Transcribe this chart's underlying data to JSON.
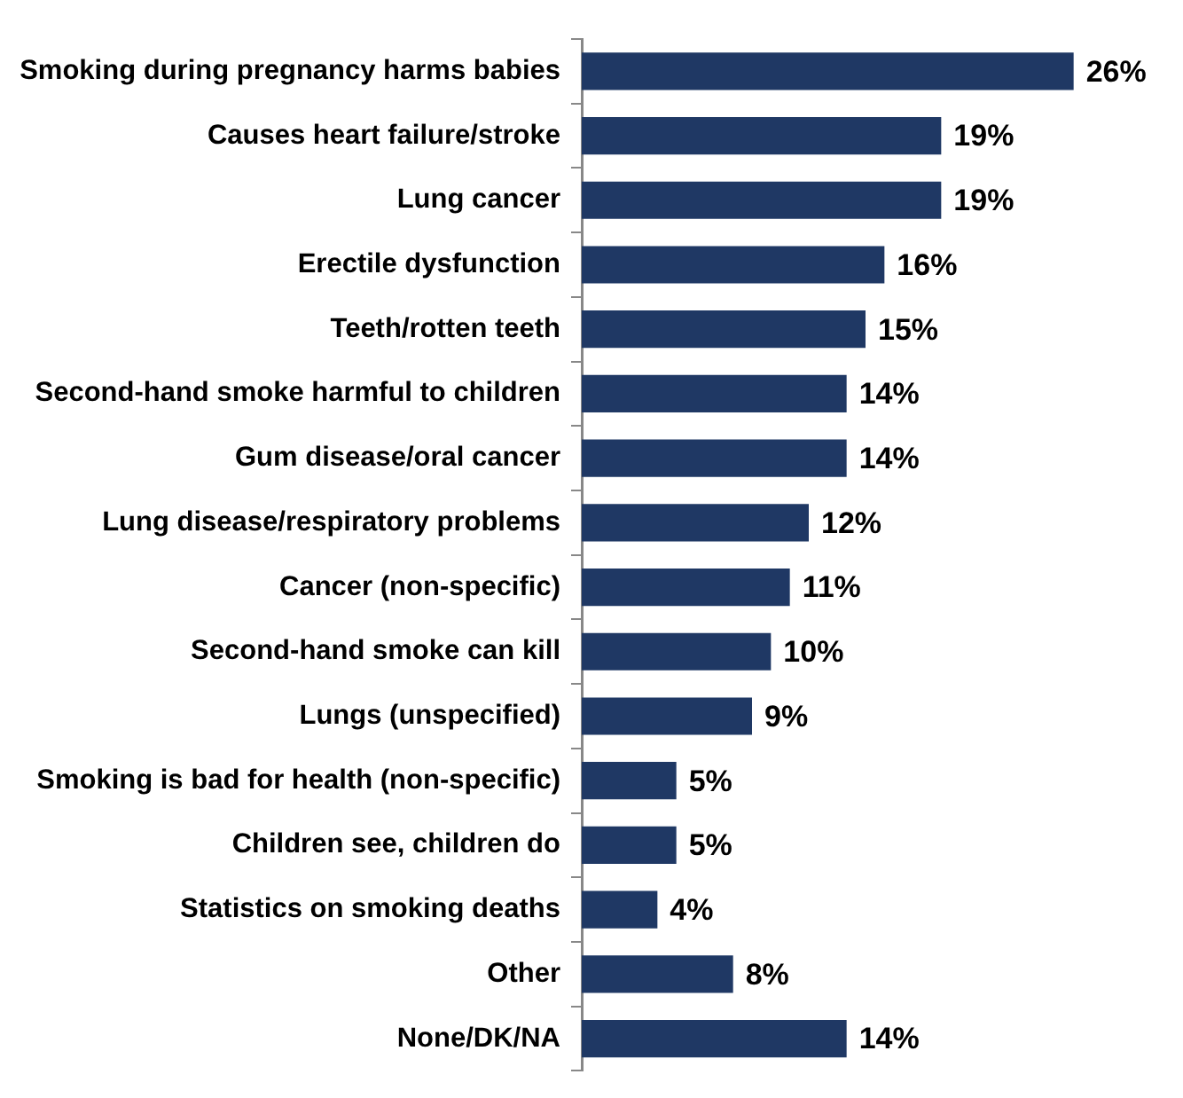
{
  "chart_data": {
    "type": "bar",
    "orientation": "horizontal",
    "categories": [
      "Smoking during pregnancy harms babies",
      "Causes heart failure/stroke",
      "Lung cancer",
      "Erectile dysfunction",
      "Teeth/rotten teeth",
      "Second-hand smoke harmful to children",
      "Gum disease/oral cancer",
      "Lung disease/respiratory problems",
      "Cancer (non-specific)",
      "Second-hand smoke can kill",
      "Lungs (unspecified)",
      "Smoking is bad for health (non-specific)",
      "Children see, children do",
      "Statistics on smoking deaths",
      "Other",
      "None/DK/NA"
    ],
    "values": [
      26,
      19,
      19,
      16,
      15,
      14,
      14,
      12,
      11,
      10,
      9,
      5,
      5,
      4,
      8,
      14
    ],
    "value_labels": [
      "26%",
      "19%",
      "19%",
      "16%",
      "15%",
      "14%",
      "14%",
      "12%",
      "11%",
      "10%",
      "9%",
      "5%",
      "5%",
      "4%",
      "8%",
      "14%"
    ],
    "color": "#1f3864",
    "grid": false,
    "legend": false,
    "tick_labels": "y"
  }
}
